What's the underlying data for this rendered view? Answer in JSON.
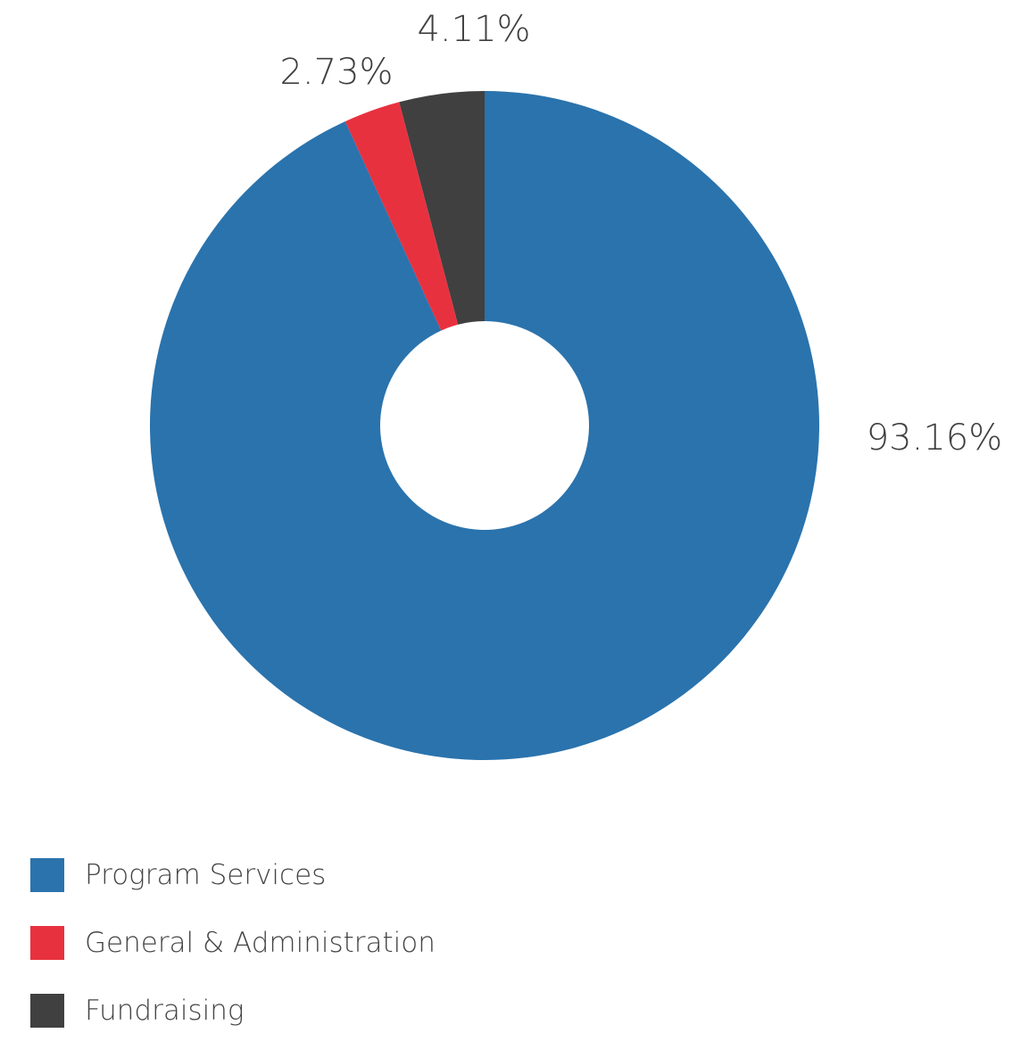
{
  "chart_data": {
    "type": "pie",
    "variant": "donut",
    "legend_position": "bottom-left",
    "slices": [
      {
        "name": "Program Services",
        "value": 93.16,
        "label": "93.16%",
        "color": "#2a73ad"
      },
      {
        "name": "General & Administration",
        "value": 2.73,
        "label": "2.73%",
        "color": "#e8313f"
      },
      {
        "name": "Fundraising",
        "value": 4.11,
        "label": "4.11%",
        "color": "#404040"
      }
    ]
  }
}
